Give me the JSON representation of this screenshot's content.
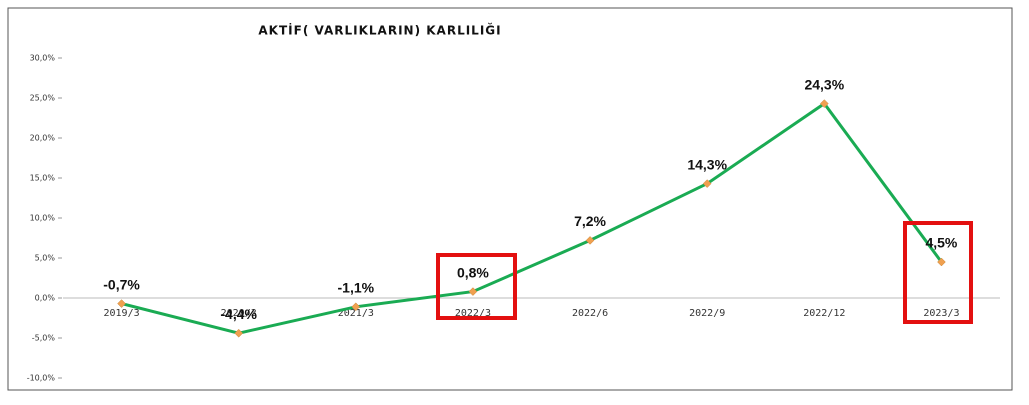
{
  "chart_data": {
    "type": "line",
    "title": "AKTİF( VARLIKLARIN) KARLILIĞI",
    "categories": [
      "2019/3",
      "2020/3",
      "2021/3",
      "2022/3",
      "2022/6",
      "2022/9",
      "2022/12",
      "2023/3"
    ],
    "series": [
      {
        "name": "AKTİF( VARLIKLARIN) KARLILIĞI",
        "color": "#1aab53",
        "values": [
          -0.7,
          -4.4,
          -1.1,
          0.8,
          7.2,
          14.3,
          24.3,
          4.5
        ],
        "value_labels": [
          "-0,7%",
          "-4,4%",
          "-1,1%",
          "0,8%",
          "7,2%",
          "14,3%",
          "24,3%",
          "4,5%"
        ]
      }
    ],
    "ylim": [
      -10,
      30
    ],
    "yticks": [
      {
        "value": -10,
        "label": "-10,0%"
      },
      {
        "value": -5,
        "label": "-5,0%"
      },
      {
        "value": 0,
        "label": "0,0%"
      },
      {
        "value": 5,
        "label": "5,0%"
      },
      {
        "value": 10,
        "label": "10,0%"
      },
      {
        "value": 15,
        "label": "15,0%"
      },
      {
        "value": 20,
        "label": "20,0%"
      },
      {
        "value": 25,
        "label": "25,0%"
      },
      {
        "value": 30,
        "label": "30,0%"
      }
    ],
    "marker_color": "#f0a050"
  }
}
